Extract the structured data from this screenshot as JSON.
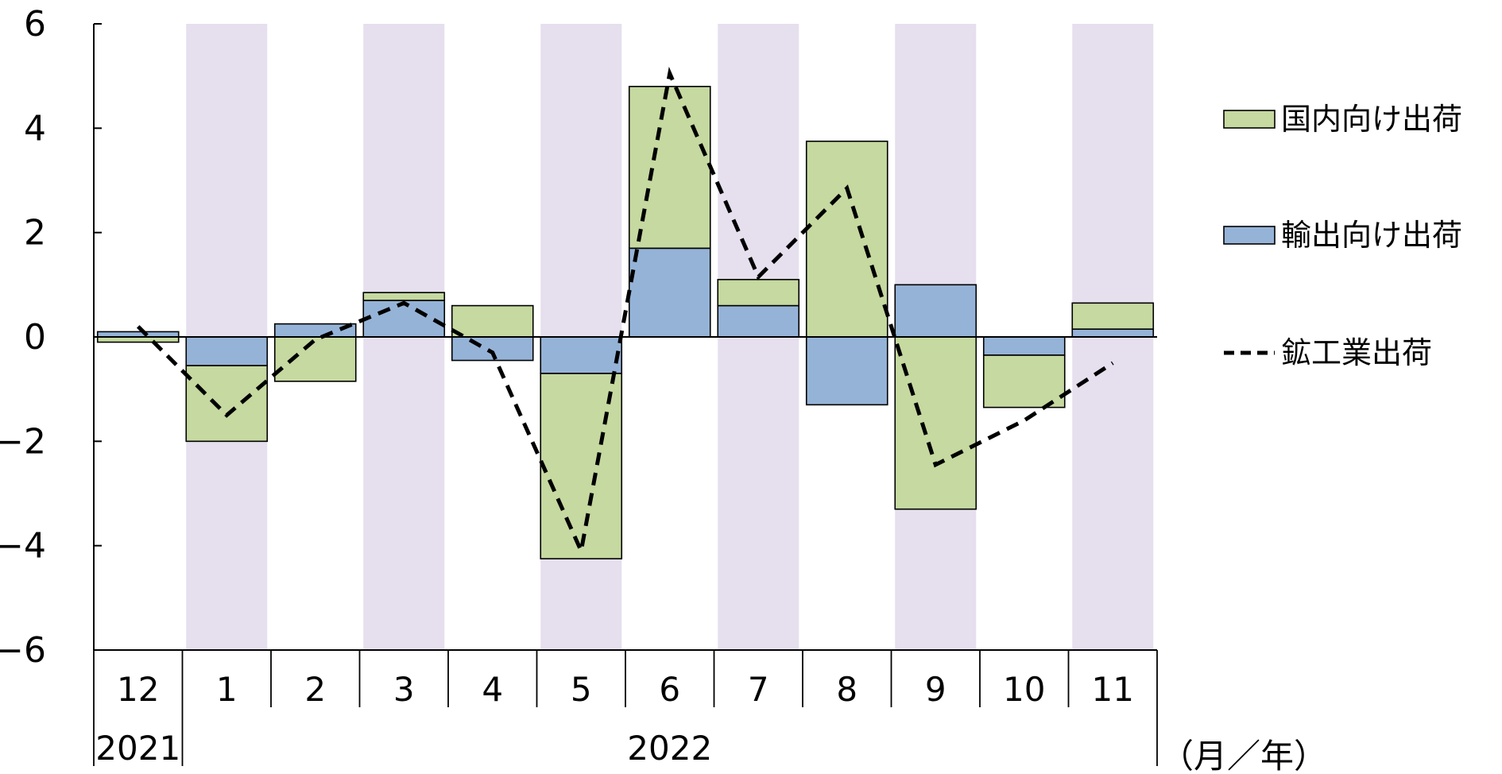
{
  "chart_data": {
    "type": "bar",
    "stacked": true,
    "categories": [
      "12",
      "1",
      "2",
      "3",
      "4",
      "5",
      "6",
      "7",
      "8",
      "9",
      "10",
      "11"
    ],
    "years": [
      {
        "label": "2021",
        "start": 0,
        "end": 0
      },
      {
        "label": "2022",
        "start": 1,
        "end": 11
      }
    ],
    "unit_label": "（月／年）",
    "ylim": [
      -6,
      6
    ],
    "yticks": [
      6,
      4,
      2,
      0,
      -2,
      -4,
      -6
    ],
    "ytick_labels": [
      "6",
      "4",
      "2",
      "0",
      "−2",
      "−4",
      "−6"
    ],
    "shaded_categories": [
      1,
      3,
      5,
      7,
      9,
      11
    ],
    "series": [
      {
        "name": "国内向け出荷",
        "kind": "bar",
        "color": "#c5d9a0",
        "values": [
          -0.1,
          -1.45,
          -0.85,
          0.15,
          0.6,
          -3.55,
          3.1,
          0.5,
          3.75,
          -3.3,
          -1.0,
          0.5
        ]
      },
      {
        "name": "輸出向け出荷",
        "kind": "bar",
        "color": "#95b3d7",
        "values": [
          0.1,
          -0.55,
          0.25,
          0.7,
          -0.45,
          -0.7,
          1.7,
          0.6,
          -1.3,
          1.0,
          -0.35,
          0.15
        ]
      },
      {
        "name": "鉱工業出荷",
        "kind": "line",
        "color": "#000000",
        "dashed": true,
        "values": [
          0.2,
          -1.5,
          -0.05,
          0.65,
          -0.3,
          -4.1,
          5.05,
          1.15,
          2.85,
          -2.45,
          -1.6,
          -0.5
        ]
      }
    ],
    "shade_color": "#e6dfee",
    "grid": false,
    "legend_position": "right"
  }
}
